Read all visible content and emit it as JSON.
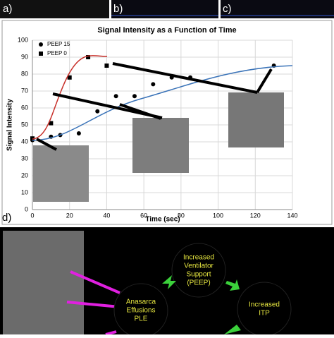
{
  "panels": {
    "a": "a)",
    "b": "b)",
    "c": "c)",
    "d": "d)"
  },
  "chart_data": {
    "type": "scatter",
    "title": "Signal Intensity as a Function of Time",
    "x_label": "Time (sec)",
    "y_label": "Signal Intensity",
    "xlim": [
      0,
      140
    ],
    "xticks": [
      0,
      20,
      40,
      60,
      80,
      100,
      120,
      140
    ],
    "ylim": [
      0,
      100
    ],
    "yticks": [
      0,
      10,
      20,
      30,
      40,
      50,
      60,
      70,
      80,
      90,
      100
    ],
    "grid": true,
    "legend": "upper left",
    "series": [
      {
        "name": "PEEP 15",
        "color": "#000000",
        "marker": "circle",
        "x": [
          0,
          10,
          15,
          25,
          35,
          45,
          55,
          65,
          75,
          85,
          130
        ],
        "values": [
          41,
          43,
          44,
          45,
          58,
          67,
          67,
          74,
          78,
          78,
          85
        ]
      },
      {
        "name": "PEEP 0",
        "color": "#000000",
        "marker": "square",
        "x": [
          0,
          10,
          20,
          30,
          40
        ],
        "values": [
          42,
          51,
          78,
          90,
          85
        ]
      }
    ]
  },
  "diagram": {
    "left": [
      "Anasarca",
      "Effusions",
      "PLE"
    ],
    "top": [
      "Increased",
      "Ventilator",
      "Support",
      "(PEEP)"
    ],
    "right": [
      "Increased",
      "ITP"
    ]
  }
}
